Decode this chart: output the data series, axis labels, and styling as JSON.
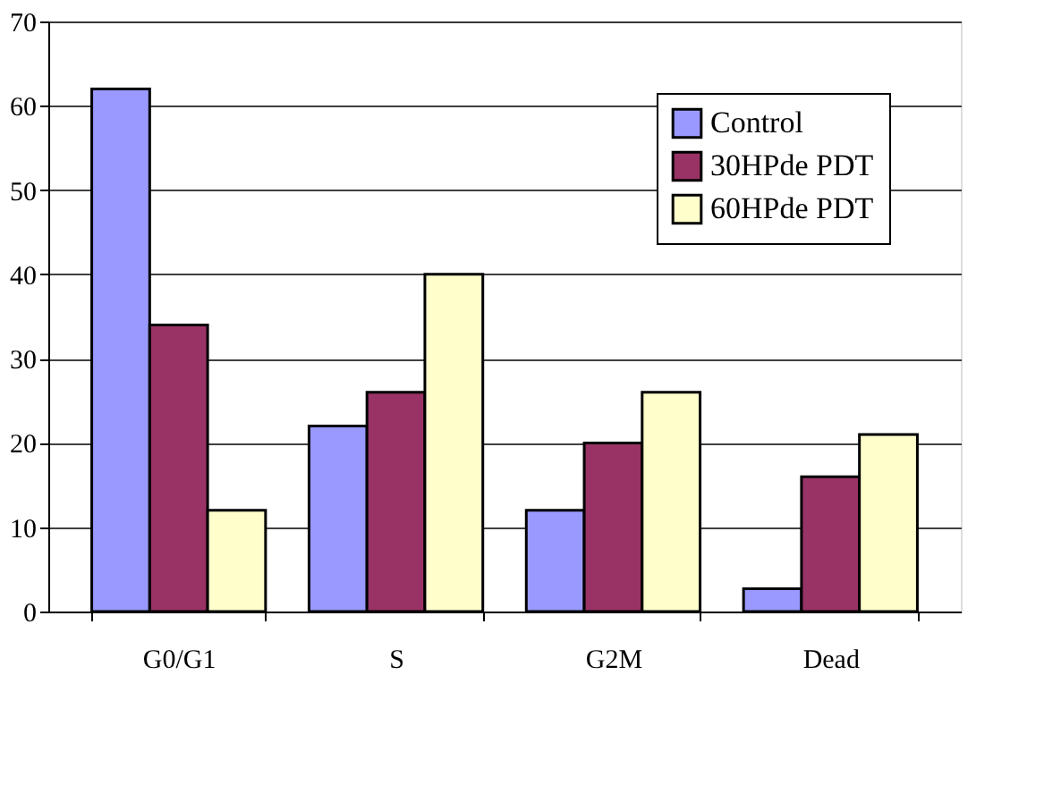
{
  "chart_data": {
    "type": "bar",
    "categories": [
      "G0/G1",
      "S",
      "G2M",
      "Dead"
    ],
    "series": [
      {
        "name": "Control",
        "color": "#9999ff",
        "values": [
          62,
          22,
          12,
          2.7
        ]
      },
      {
        "name": "30HPde PDT",
        "color": "#993366",
        "values": [
          34,
          26,
          20,
          16
        ]
      },
      {
        "name": "60HPde PDT",
        "color": "#ffffcc",
        "values": [
          12,
          40,
          26,
          21
        ]
      }
    ],
    "ylim": [
      0,
      70
    ],
    "yticks": [
      0,
      10,
      20,
      30,
      40,
      50,
      60,
      70
    ],
    "grid": "y",
    "legend": "top right"
  }
}
